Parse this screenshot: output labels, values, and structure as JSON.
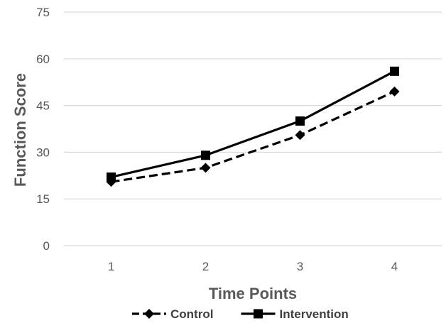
{
  "chart_data": {
    "type": "line",
    "title": "",
    "xlabel": "Time Points",
    "ylabel": "Function Score",
    "categories": [
      "1",
      "2",
      "3",
      "4"
    ],
    "ylim": [
      0,
      75
    ],
    "yticks": [
      "0",
      "15",
      "30",
      "45",
      "60",
      "75"
    ],
    "grid": true,
    "legend_position": "bottom",
    "series": [
      {
        "name": "Control",
        "values": [
          20.5,
          25,
          35.5,
          49.5
        ],
        "marker": "diamond",
        "line": "dashed",
        "color": "#000000"
      },
      {
        "name": "Intervention",
        "values": [
          22,
          29,
          40,
          56
        ],
        "marker": "square",
        "line": "solid",
        "color": "#000000"
      }
    ]
  }
}
